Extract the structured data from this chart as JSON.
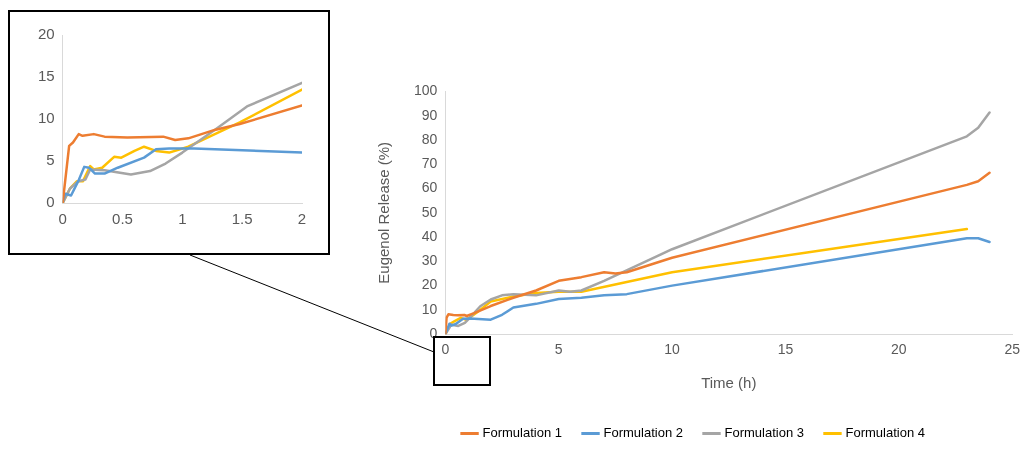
{
  "chart_data": [
    {
      "type": "line",
      "xlim": [
        0,
        2
      ],
      "ylim": [
        0,
        20
      ],
      "xticks": [
        0,
        0.5,
        1,
        1.5,
        2
      ],
      "yticks": [
        0,
        5,
        10,
        15,
        20
      ],
      "grid": false,
      "marker": "none",
      "line_style": "solid",
      "series": [
        {
          "color": "#ed7d31",
          "x": [
            0,
            0.054,
            0.086,
            0.134,
            0.166,
            0.26,
            0.35,
            0.54,
            0.84,
            0.94,
            1.05,
            1.27,
            1.48,
            2
          ],
          "values": [
            0,
            6.8,
            7.2,
            8.2,
            8.0,
            8.2,
            7.9,
            7.8,
            7.9,
            7.5,
            7.7,
            8.7,
            9.4,
            11.6
          ]
        },
        {
          "color": "#5b9bd5",
          "x": [
            0,
            0.02,
            0.07,
            0.13,
            0.18,
            0.22,
            0.27,
            0.35,
            0.46,
            0.68,
            0.78,
            0.89,
            1.1,
            2
          ],
          "values": [
            0,
            1.1,
            0.9,
            2.6,
            4.3,
            4.2,
            3.5,
            3.5,
            4.2,
            5.4,
            6.4,
            6.5,
            6.5,
            6.0
          ]
        },
        {
          "color": "#a5a5a5",
          "x": [
            0,
            0.06,
            0.13,
            0.19,
            0.23,
            0.35,
            0.57,
            0.73,
            0.86,
            1,
            1.27,
            1.54,
            2
          ],
          "values": [
            0,
            1.7,
            2.6,
            2.8,
            4.0,
            3.9,
            3.4,
            3.8,
            4.7,
            6.0,
            8.7,
            11.5,
            14.3
          ]
        },
        {
          "color": "#ffc000",
          "x": [
            0,
            0.06,
            0.12,
            0.17,
            0.23,
            0.26,
            0.33,
            0.43,
            0.49,
            0.6,
            0.68,
            0.78,
            0.89,
            1.05,
            1.48,
            2
          ],
          "values": [
            0,
            1.7,
            2.6,
            2.6,
            4.4,
            4.0,
            4.2,
            5.5,
            5.4,
            6.2,
            6.7,
            6.2,
            6.0,
            6.7,
            9.6,
            13.5
          ]
        }
      ]
    },
    {
      "type": "line",
      "xlabel": "Time (h)",
      "ylabel": "Eugenol Release (%)",
      "xlim": [
        0,
        25
      ],
      "ylim": [
        0,
        100
      ],
      "xticks": [
        0,
        5,
        10,
        15,
        20,
        25
      ],
      "yticks": [
        0,
        10,
        20,
        30,
        40,
        50,
        60,
        70,
        80,
        90,
        100
      ],
      "grid": false,
      "legend": "bottom",
      "marker": "none",
      "line_style": "solid",
      "series": [
        {
          "name": "Formulation 1",
          "color": "#ed7d31",
          "x": [
            0,
            0.054,
            0.134,
            0.35,
            0.54,
            0.84,
            0.94,
            1.27,
            2,
            3,
            4,
            5,
            6,
            7,
            7.5,
            8,
            10,
            23,
            23.5,
            24
          ],
          "values": [
            0,
            6.8,
            8.2,
            7.9,
            7.8,
            7.9,
            7.5,
            8.7,
            11.6,
            15,
            18,
            22,
            23.5,
            25.5,
            25,
            25.5,
            31.5,
            61.5,
            63,
            66.5
          ]
        },
        {
          "name": "Formulation 2",
          "color": "#5b9bd5",
          "x": [
            0,
            0.18,
            0.27,
            0.46,
            0.78,
            1.1,
            2,
            2.5,
            3,
            4,
            5,
            6,
            7,
            8,
            10,
            23,
            23.5,
            24
          ],
          "values": [
            0,
            4.3,
            3.5,
            4.2,
            6.4,
            6.5,
            6,
            8,
            11,
            12.5,
            14.5,
            15,
            16,
            16.5,
            20,
            39.5,
            39.5,
            38
          ]
        },
        {
          "name": "Formulation 3",
          "color": "#a5a5a5",
          "x": [
            0,
            0.19,
            0.23,
            0.57,
            0.86,
            1,
            1.54,
            2,
            2.5,
            3,
            4,
            5,
            5.5,
            6,
            7,
            10,
            23,
            23.5,
            24
          ],
          "values": [
            0,
            2.8,
            4,
            3.4,
            4.7,
            6,
            11.5,
            14.3,
            16,
            16.5,
            16,
            18,
            17.5,
            18,
            22,
            35,
            81.5,
            85,
            91.3
          ]
        },
        {
          "name": "Formulation 4",
          "color": "#ffc000",
          "x": [
            0,
            0.23,
            0.43,
            0.68,
            0.89,
            1.05,
            1.48,
            2,
            3,
            4,
            5,
            6,
            10,
            23
          ],
          "values": [
            0,
            4.4,
            5.5,
            6.7,
            6,
            6.7,
            9.6,
            13.5,
            15.5,
            17,
            17.5,
            17.5,
            25.5,
            43.3
          ]
        }
      ]
    }
  ]
}
